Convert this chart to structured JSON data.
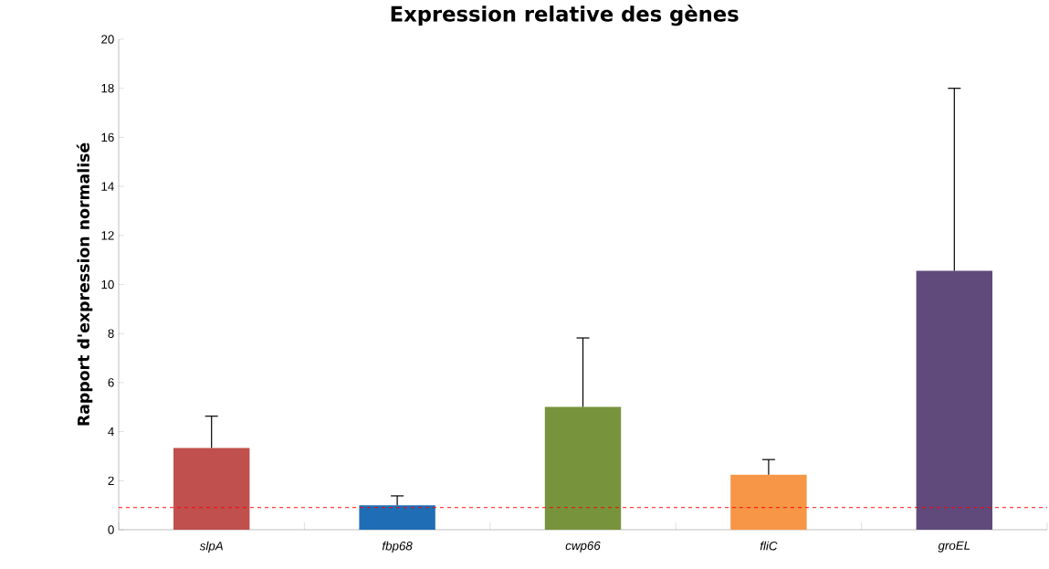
{
  "chart_data": {
    "type": "bar",
    "title": "Expression relative des gènes",
    "ylabel": "Rapport d'expression normalisé",
    "categories": [
      "slpA",
      "fbp68",
      "cwp66",
      "fliC",
      "groEL"
    ],
    "values": [
      3.33,
      1.0,
      5.01,
      2.24,
      10.56
    ],
    "colors": [
      "#c0504d",
      "#1f6eb5",
      "#77933c",
      "#f79646",
      "#604a7b"
    ],
    "errors": [
      [
        3.33,
        4.63
      ],
      [
        1.0,
        1.38
      ],
      [
        5.01,
        7.82
      ],
      [
        2.24,
        2.86
      ],
      [
        10.56,
        18.0
      ]
    ],
    "ylim": [
      0,
      20
    ],
    "yticks": [
      0,
      2,
      4,
      6,
      8,
      10,
      12,
      14,
      16,
      18,
      20
    ],
    "ref_lines": [
      {
        "axis": "y",
        "value": 0.9,
        "color": "#ff0000",
        "line_style": "dashed"
      }
    ]
  }
}
